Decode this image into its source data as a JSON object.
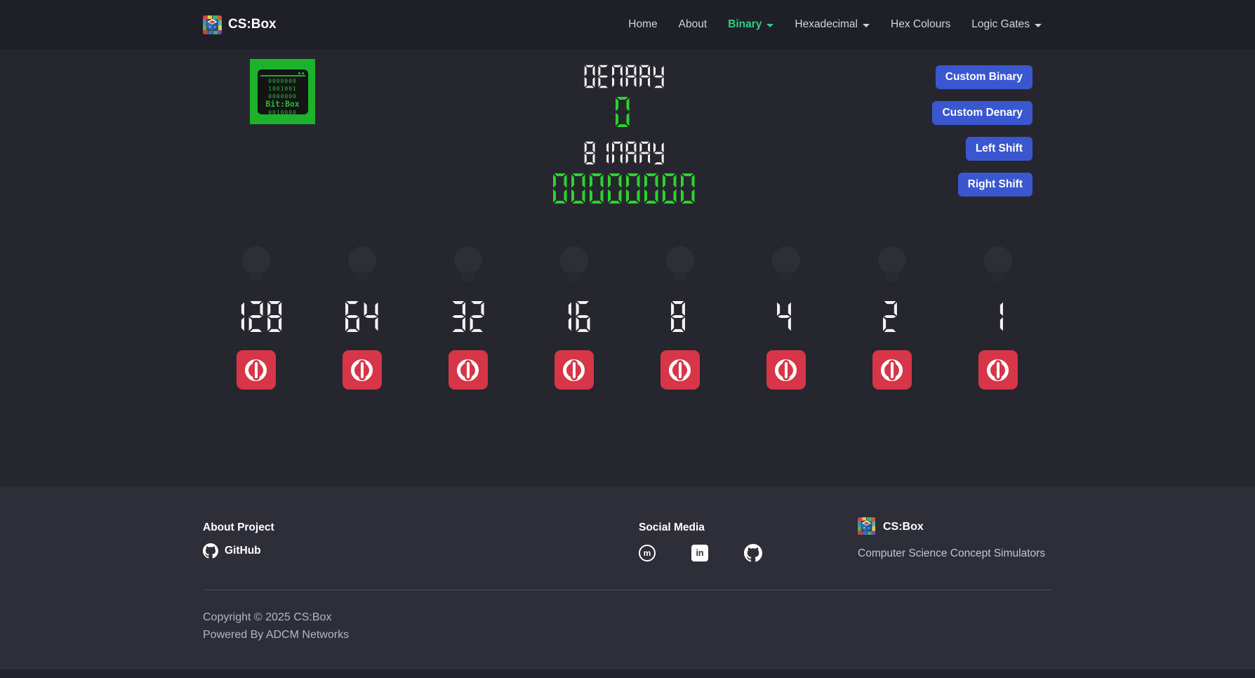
{
  "colors": {
    "accent_green": "#2ece84",
    "primary_blue": "#3a57d0",
    "danger_red": "#d63648",
    "lcd_white": "#f2f2f2",
    "lcd_green": "#2bd42b"
  },
  "navbar": {
    "brand": "CS:Box",
    "links": [
      {
        "label": "Home",
        "active": false,
        "dropdown": false
      },
      {
        "label": "About",
        "active": false,
        "dropdown": false
      },
      {
        "label": "Binary",
        "active": true,
        "dropdown": true
      },
      {
        "label": "Hexadecimal",
        "active": false,
        "dropdown": true
      },
      {
        "label": "Hex Colours",
        "active": false,
        "dropdown": false
      },
      {
        "label": "Logic Gates",
        "active": false,
        "dropdown": true
      }
    ]
  },
  "simulator": {
    "logo": {
      "row1": "0000000",
      "row2": "1001001",
      "row3": "0000000",
      "title": "Bit:Box",
      "row4": "0010000"
    },
    "denary_label": "DENARY",
    "denary_value": "0",
    "binary_label": "BINARY",
    "binary_value": "00000000",
    "controls": [
      {
        "label": "Custom Binary"
      },
      {
        "label": "Custom Denary"
      },
      {
        "label": "Left Shift"
      },
      {
        "label": "Right Shift"
      }
    ],
    "bits": [
      {
        "place": "128",
        "bit": "0",
        "bulb": "off"
      },
      {
        "place": "64",
        "bit": "0",
        "bulb": "off"
      },
      {
        "place": "32",
        "bit": "0",
        "bulb": "off"
      },
      {
        "place": "16",
        "bit": "0",
        "bulb": "off"
      },
      {
        "place": "8",
        "bit": "0",
        "bulb": "off"
      },
      {
        "place": "4",
        "bit": "0",
        "bulb": "off"
      },
      {
        "place": "2",
        "bit": "0",
        "bulb": "off"
      },
      {
        "place": "1",
        "bit": "0",
        "bulb": "off"
      }
    ]
  },
  "footer": {
    "about_heading": "About Project",
    "github_label": "GitHub",
    "social_heading": "Social Media",
    "social_icons": [
      "mastodon",
      "linkedin",
      "github"
    ],
    "brand": "CS:Box",
    "tagline": "Computer Science Concept Simulators",
    "copyright": "Copyright © 2025 CS:Box",
    "powered_by": "Powered By ADCM Networks"
  }
}
